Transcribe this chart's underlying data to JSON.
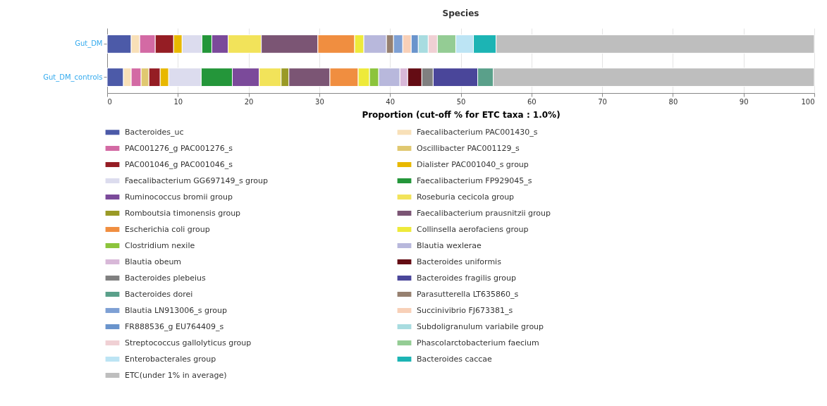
{
  "chart_data": {
    "type": "bar",
    "title": "Species",
    "xlabel": "Proportion (cut-off % for ETC taxa : 1.0%)",
    "orientation": "horizontal",
    "stacked": true,
    "categories": [
      "Gut_DM",
      "Gut_DM_controls"
    ],
    "xlim": [
      0,
      100
    ],
    "xticks": [
      0,
      10,
      20,
      30,
      40,
      50,
      60,
      70,
      80,
      90,
      100
    ],
    "grid": "x",
    "legend": "bottom",
    "series": [
      {
        "name": "Bacteroides_uc",
        "color": "#4c5aa8",
        "values": [
          3.4,
          2.3
        ]
      },
      {
        "name": "Faecalibacterium PAC001430_s",
        "color": "#f8e0b8",
        "values": [
          1.2,
          1.1
        ]
      },
      {
        "name": "PAC001276_g PAC001276_s",
        "color": "#d36aa4",
        "values": [
          2.2,
          1.4
        ]
      },
      {
        "name": "Oscillibacter PAC001129_s",
        "color": "#e0c870",
        "values": [
          0,
          1.1
        ]
      },
      {
        "name": "PAC001046_g PAC001046_s",
        "color": "#951d24",
        "values": [
          2.6,
          1.6
        ]
      },
      {
        "name": "Dialister PAC001040_s group",
        "color": "#e8b800",
        "values": [
          1.2,
          1.2
        ]
      },
      {
        "name": "Faecalibacterium GG697149_s group",
        "color": "#dcdcee",
        "values": [
          2.8,
          4.6
        ]
      },
      {
        "name": "Faecalibacterium FP929045_s",
        "color": "#24963a",
        "values": [
          1.4,
          4.4
        ]
      },
      {
        "name": "Ruminococcus bromii group",
        "color": "#7b4a9a",
        "values": [
          2.3,
          3.8
        ]
      },
      {
        "name": "Roseburia cecicola group",
        "color": "#f2e35a",
        "values": [
          4.7,
          3.1
        ]
      },
      {
        "name": "Romboutsia timonensis group",
        "color": "#9a9a26",
        "values": [
          0,
          1.1
        ]
      },
      {
        "name": "Faecalibacterium prausnitzii group",
        "color": "#7b5574",
        "values": [
          8.0,
          5.8
        ]
      },
      {
        "name": "Escherichia coli group",
        "color": "#f08e40",
        "values": [
          5.2,
          4.0
        ]
      },
      {
        "name": "Collinsella aerofaciens group",
        "color": "#eeea3a",
        "values": [
          1.3,
          1.6
        ]
      },
      {
        "name": "Clostridium nexile",
        "color": "#8cc43c",
        "values": [
          0,
          1.3
        ]
      },
      {
        "name": "Blautia wexlerae",
        "color": "#b8b8dc",
        "values": [
          3.2,
          3.0
        ]
      },
      {
        "name": "Blautia obeum",
        "color": "#d8b8d8",
        "values": [
          0,
          1.1
        ]
      },
      {
        "name": "Bacteroides uniformis",
        "color": "#640c14",
        "values": [
          0,
          2.0
        ]
      },
      {
        "name": "Bacteroides plebeius",
        "color": "#808080",
        "values": [
          0,
          1.6
        ]
      },
      {
        "name": "Bacteroides fragilis group",
        "color": "#4a469a",
        "values": [
          0,
          6.3
        ]
      },
      {
        "name": "Bacteroides dorei",
        "color": "#5aa08a",
        "values": [
          0,
          2.2
        ]
      },
      {
        "name": "Parasutterella LT635860_s",
        "color": "#968070",
        "values": [
          1.0,
          0
        ]
      },
      {
        "name": "Blautia LN913006_s group",
        "color": "#7ea0d4",
        "values": [
          1.3,
          0
        ]
      },
      {
        "name": "Succinivibrio FJ673381_s",
        "color": "#f8d0b8",
        "values": [
          1.2,
          0
        ]
      },
      {
        "name": "FR888536_g EU764409_s",
        "color": "#6a94cc",
        "values": [
          1.0,
          0
        ]
      },
      {
        "name": "Subdoligranulum variabile group",
        "color": "#a8dce0",
        "values": [
          1.4,
          0
        ]
      },
      {
        "name": "Streptococcus gallolyticus group",
        "color": "#f0d0d4",
        "values": [
          1.3,
          0
        ]
      },
      {
        "name": "Phascolarctobacterium faecium",
        "color": "#94cc94",
        "values": [
          2.6,
          0
        ]
      },
      {
        "name": "Enterobacterales group",
        "color": "#bce4f4",
        "values": [
          2.5,
          0
        ]
      },
      {
        "name": "Bacteroides caccae",
        "color": "#1cb4b4",
        "values": [
          3.2,
          0
        ]
      },
      {
        "name": "ETC(under 1% in average)",
        "color": "#bebebe",
        "values": [
          45.0,
          45.4
        ]
      }
    ]
  }
}
